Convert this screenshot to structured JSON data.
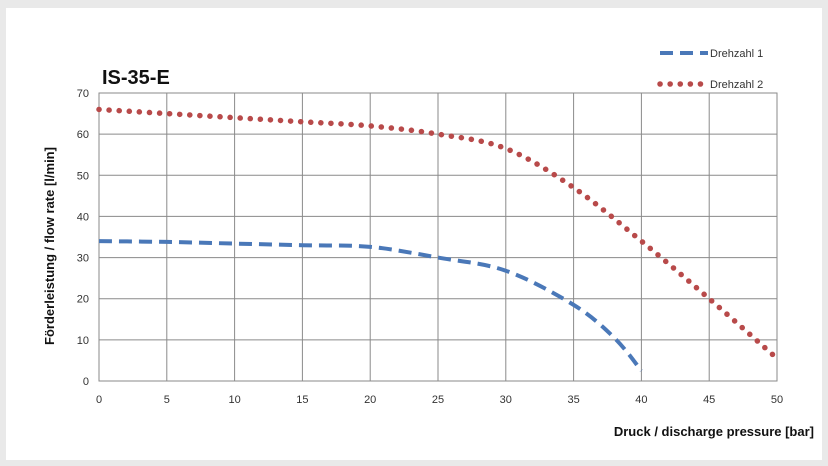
{
  "chart_data": {
    "type": "line",
    "title": "IS-35-E",
    "xlabel": "Druck / discharge pressure [bar]",
    "ylabel": "Förderleistung / flow rate [l/min]",
    "xlim": [
      0,
      50
    ],
    "ylim": [
      0,
      70
    ],
    "xticks": [
      0,
      5,
      10,
      15,
      20,
      25,
      30,
      35,
      40,
      45,
      50
    ],
    "yticks": [
      0,
      10,
      20,
      30,
      40,
      50,
      60,
      70
    ],
    "grid": true,
    "legend_position": "top-right",
    "series": [
      {
        "name": "Drehzahl 1",
        "style": "dashed",
        "color": "#4a78b8",
        "x": [
          0,
          5,
          10,
          15,
          20,
          25,
          30,
          35,
          38,
          40
        ],
        "y": [
          34,
          33.8,
          33.4,
          33,
          32.6,
          30,
          26.8,
          18.5,
          10.5,
          2.5
        ]
      },
      {
        "name": "Drehzahl 2",
        "style": "dotted",
        "color": "#b84a4a",
        "x": [
          0,
          5,
          10,
          15,
          20,
          25,
          30,
          35,
          40,
          45,
          50
        ],
        "y": [
          66,
          65,
          64,
          63,
          62,
          60,
          56.5,
          47,
          34,
          20,
          5.5
        ]
      }
    ]
  }
}
